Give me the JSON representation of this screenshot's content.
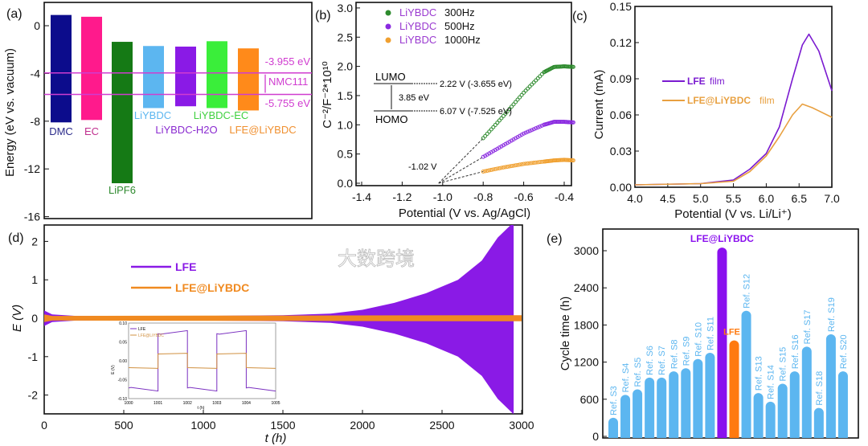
{
  "watermark": "大数跨境",
  "chart_data": [
    {
      "panel": "(a)",
      "type": "bar",
      "ylabel": "Energy (eV vs. vacuum)",
      "ylim": [
        -16,
        2
      ],
      "yticks": [
        "0",
        "-4",
        "-8",
        "-12",
        "-16"
      ],
      "categories": [
        "DMC",
        "EC",
        "LiPF6",
        "LiYBDC",
        "LiYBDC-H2O",
        "LiYBDC-EC",
        "LFE@LiYBDC"
      ],
      "lumo": [
        0.9,
        0.75,
        -1.35,
        -1.7,
        -1.75,
        -1.3,
        -1.9
      ],
      "homo": [
        -8.1,
        -7.9,
        -13.2,
        -6.9,
        -6.75,
        -6.9,
        -7.1
      ],
      "colors": [
        "#0c0c8c",
        "#ff1a8c",
        "#157a15",
        "#5cb6f0",
        "#8a1ae6",
        "#3aee3a",
        "#ff8a1a"
      ],
      "label_colors": [
        "#2a2a8a",
        "#c0308f",
        "#2f8a2f",
        "#5cb6f0",
        "#8a2ad0",
        "#40d040",
        "#f09030"
      ],
      "reference_lines": [
        -3.955,
        -5.755
      ],
      "annotations": [
        "-3.955 eV",
        "NMC111",
        "-5.755 eV"
      ],
      "accent": "#d03cd0"
    },
    {
      "panel": "(b)",
      "type": "scatter",
      "xlabel": "Potential (V vs. Ag/AgCl)",
      "ylabel": "C⁻²/F⁻²*10¹⁰",
      "xlim": [
        -1.4,
        -0.35
      ],
      "ylim": [
        0,
        3.0
      ],
      "xticks": [
        "-1.4",
        "-1.2",
        "-1.0",
        "-0.8",
        "-0.6",
        "-0.4"
      ],
      "yticks": [
        "0.0",
        "0.5",
        "1.0",
        "1.5",
        "2.0",
        "2.5",
        "3.0"
      ],
      "legend_prefix": "LiYBDC",
      "series": [
        {
          "name": "300Hz",
          "color": "#2e8b2e",
          "x": [
            -0.8,
            -0.7,
            -0.6,
            -0.5,
            -0.45,
            -0.4,
            -0.35
          ],
          "y": [
            0.77,
            1.15,
            1.55,
            1.9,
            1.99,
            2.0,
            1.99
          ]
        },
        {
          "name": "500Hz",
          "color": "#8a2ae0",
          "x": [
            -0.8,
            -0.7,
            -0.6,
            -0.5,
            -0.45,
            -0.4,
            -0.35
          ],
          "y": [
            0.45,
            0.65,
            0.85,
            1.0,
            1.05,
            1.05,
            1.04
          ]
        },
        {
          "name": "1000Hz",
          "color": "#f0a030",
          "x": [
            -0.8,
            -0.7,
            -0.6,
            -0.5,
            -0.45,
            -0.4,
            -0.35
          ],
          "y": [
            0.2,
            0.27,
            0.33,
            0.37,
            0.39,
            0.4,
            0.39
          ]
        }
      ],
      "intercept": -1.02,
      "annotations": {
        "intercept": "-1.02 V",
        "lumo": "LUMO",
        "homo": "HOMO",
        "gap": "3.85 eV",
        "lumo_value": "2.22 V (-3.655 eV)",
        "homo_value": "6.07 V (-7.525 eV)"
      }
    },
    {
      "panel": "(c)",
      "type": "line",
      "xlabel": "Potential (V vs. Li/Li⁺)",
      "ylabel": "Current (mA)",
      "xlim": [
        4.0,
        7.0
      ],
      "ylim": [
        0,
        0.15
      ],
      "xticks": [
        "4.0",
        "4.5",
        "5.0",
        "5.5",
        "6.0",
        "6.5",
        "7.0"
      ],
      "yticks": [
        "0.00",
        "0.03",
        "0.06",
        "0.09",
        "0.12",
        "0.15"
      ],
      "series": [
        {
          "name": "LFE",
          "suffix": "film",
          "color": "#7a1ad0",
          "x": [
            4.0,
            5.0,
            5.5,
            5.75,
            6.0,
            6.2,
            6.4,
            6.55,
            6.65,
            6.8,
            7.0
          ],
          "y": [
            0.002,
            0.003,
            0.006,
            0.015,
            0.028,
            0.05,
            0.09,
            0.118,
            0.127,
            0.113,
            0.08
          ]
        },
        {
          "name": "LFE@LiYBDC",
          "suffix": "film",
          "color": "#e8a040",
          "x": [
            4.0,
            5.0,
            5.5,
            5.75,
            6.0,
            6.2,
            6.4,
            6.55,
            6.7,
            7.0
          ],
          "y": [
            0.002,
            0.003,
            0.005,
            0.013,
            0.026,
            0.042,
            0.06,
            0.069,
            0.066,
            0.058
          ]
        }
      ]
    },
    {
      "panel": "(d)",
      "type": "area",
      "xlabel": "t (h)",
      "ylabel": "E (V)",
      "xlim": [
        0,
        3000
      ],
      "ylim": [
        -2.5,
        2.5
      ],
      "xticks": [
        "0",
        "500",
        "1000",
        "1500",
        "2000",
        "2500",
        "3000"
      ],
      "yticks": [
        "-2",
        "-1",
        "0",
        "1",
        "2"
      ],
      "series": [
        {
          "name": "LFE",
          "color": "#8a1ae6",
          "t": [
            0,
            50,
            200,
            1000,
            1500,
            1800,
            2000,
            2200,
            2400,
            2600,
            2750,
            2850,
            2950
          ],
          "amplitude": [
            0.2,
            0.1,
            0.06,
            0.06,
            0.08,
            0.12,
            0.22,
            0.4,
            0.65,
            1.0,
            1.5,
            2.1,
            2.5
          ]
        },
        {
          "name": "LFE@LiYBDC",
          "color": "#f08a20",
          "t": [
            0,
            50,
            3000
          ],
          "amplitude": [
            0.1,
            0.06,
            0.08
          ]
        }
      ],
      "inset": {
        "xticks": [
          "1000",
          "1001",
          "1002",
          "1003",
          "1004",
          "1005"
        ],
        "yticks": [
          "0.10",
          "0.05",
          "0.00",
          "-0.05",
          "-0.10"
        ],
        "xlabel": "t (h)",
        "ylabel": "E (V)",
        "legend": [
          "LFE",
          "LFE@LiYBDC"
        ],
        "LFE_amplitude": 0.08,
        "LFE@LiYBDC_amplitude": 0.02
      }
    },
    {
      "panel": "(e)",
      "type": "bar",
      "ylabel": "Cycle time (h)",
      "ylim": [
        0,
        3300
      ],
      "yticks": [
        "0",
        "600",
        "1200",
        "1800",
        "2400",
        "3000"
      ],
      "categories": [
        "Ref. S3",
        "Ref. S4",
        "Ref. S5",
        "Ref. S6",
        "Ref. S7",
        "Ref. S8",
        "Ref. S9",
        "Ref. S10",
        "Ref. S11",
        "LFE@LiYBDC",
        "LFE",
        "Ref. S12",
        "Ref. S13",
        "Ref. S14",
        "Ref. S15",
        "Ref. S16",
        "Ref. S17",
        "Ref. S18",
        "Ref. S19",
        "Ref. S20"
      ],
      "values": [
        300,
        670,
        760,
        950,
        950,
        1050,
        1100,
        1250,
        1350,
        3050,
        1550,
        2030,
        700,
        560,
        850,
        1050,
        1450,
        460,
        1650,
        1050
      ],
      "colors": {
        "ref": "#5cb6f0",
        "LFE@LiYBDC": "#8a10ee",
        "LFE": "#ff7a10"
      }
    }
  ]
}
